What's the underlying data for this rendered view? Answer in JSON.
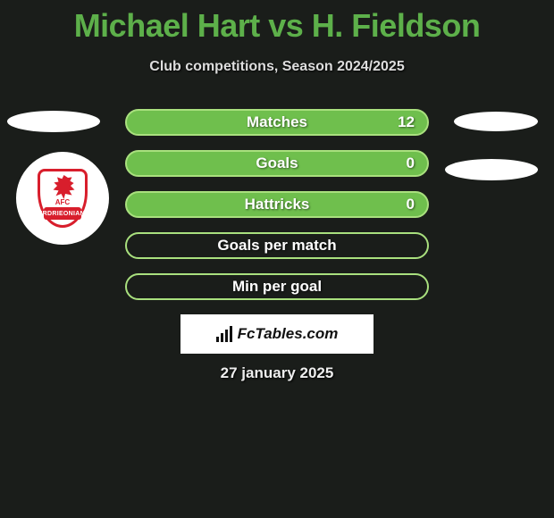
{
  "title": {
    "text": "Michael Hart vs H. Fieldson",
    "color": "#5db04a"
  },
  "subtitle": "Club competitions, Season 2024/2025",
  "date": "27 january 2025",
  "brand": "FcTables.com",
  "club_badge": {
    "abbrev": "AFC",
    "ribbon_text": "AIRDRIEONIANS",
    "primary": "#d81e2c"
  },
  "colors": {
    "background": "#1a1d1a",
    "bar_fill": "#6fbf4d",
    "bar_stroke": "#a9e07e",
    "text_shadow": "rgba(0,0,0,0.55)"
  },
  "stats": [
    {
      "label": "Matches",
      "value": "12",
      "display_value": true,
      "filled": true
    },
    {
      "label": "Goals",
      "value": "0",
      "display_value": true,
      "filled": true
    },
    {
      "label": "Hattricks",
      "value": "0",
      "display_value": true,
      "filled": true
    },
    {
      "label": "Goals per match",
      "value": "",
      "display_value": false,
      "filled": false
    },
    {
      "label": "Min per goal",
      "value": "",
      "display_value": false,
      "filled": false
    }
  ]
}
